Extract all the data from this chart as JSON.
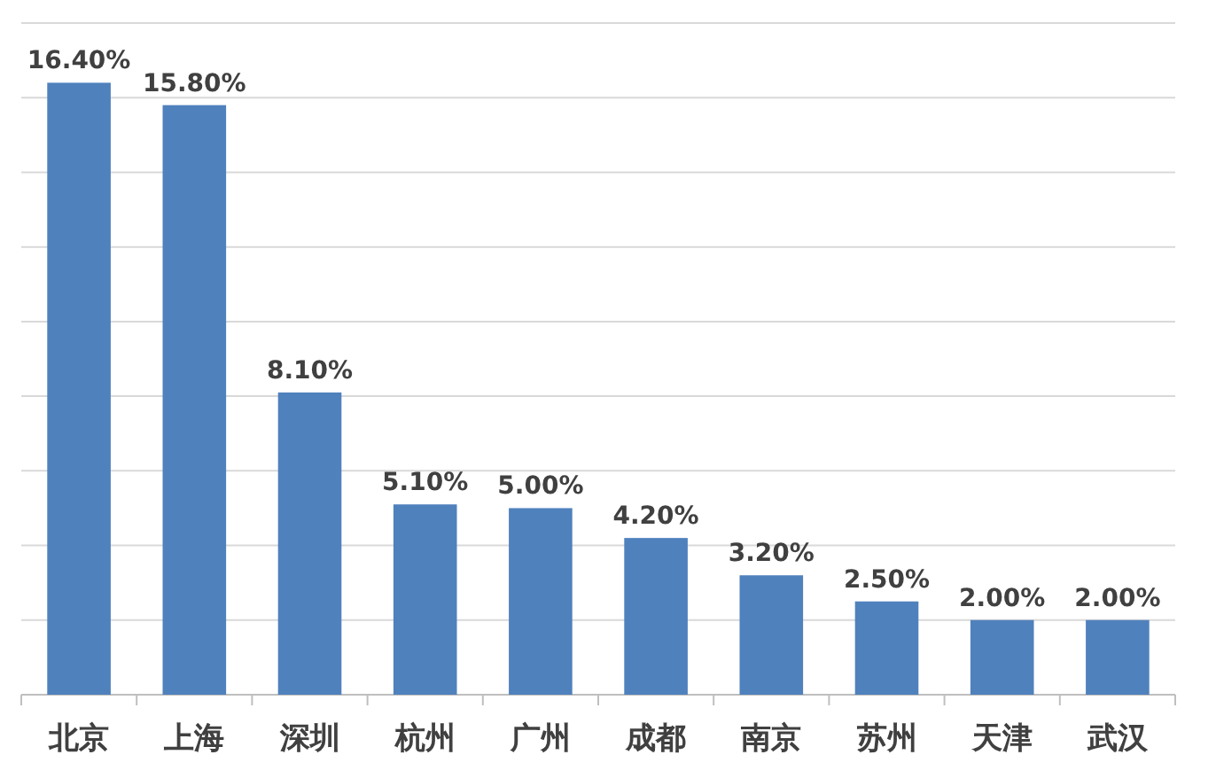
{
  "chart_data": {
    "type": "bar",
    "categories": [
      "北京",
      "上海",
      "深圳",
      "杭州",
      "广州",
      "成都",
      "南京",
      "苏州",
      "天津",
      "武汉"
    ],
    "values": [
      16.4,
      15.8,
      8.1,
      5.1,
      5.0,
      4.2,
      3.2,
      2.5,
      2.0,
      2.0
    ],
    "value_labels": [
      "16.40%",
      "15.80%",
      "8.10%",
      "5.10%",
      "5.00%",
      "4.20%",
      "3.20%",
      "2.50%",
      "2.00%",
      "2.00%"
    ],
    "color": "#4f81bd",
    "ylim": [
      0,
      18
    ],
    "yticks": [
      {
        "value": 0,
        "label": null
      },
      {
        "value": 2,
        "label": null
      },
      {
        "value": 4,
        "label": null
      },
      {
        "value": 6,
        "label": null
      },
      {
        "value": 8,
        "label": null
      },
      {
        "value": 10,
        "label": null
      },
      {
        "value": 12,
        "label": null
      },
      {
        "value": 14,
        "label": null
      },
      {
        "value": 16,
        "label": null
      },
      {
        "value": 18,
        "label": null
      }
    ],
    "grid": "y",
    "tick_labels": "x"
  }
}
